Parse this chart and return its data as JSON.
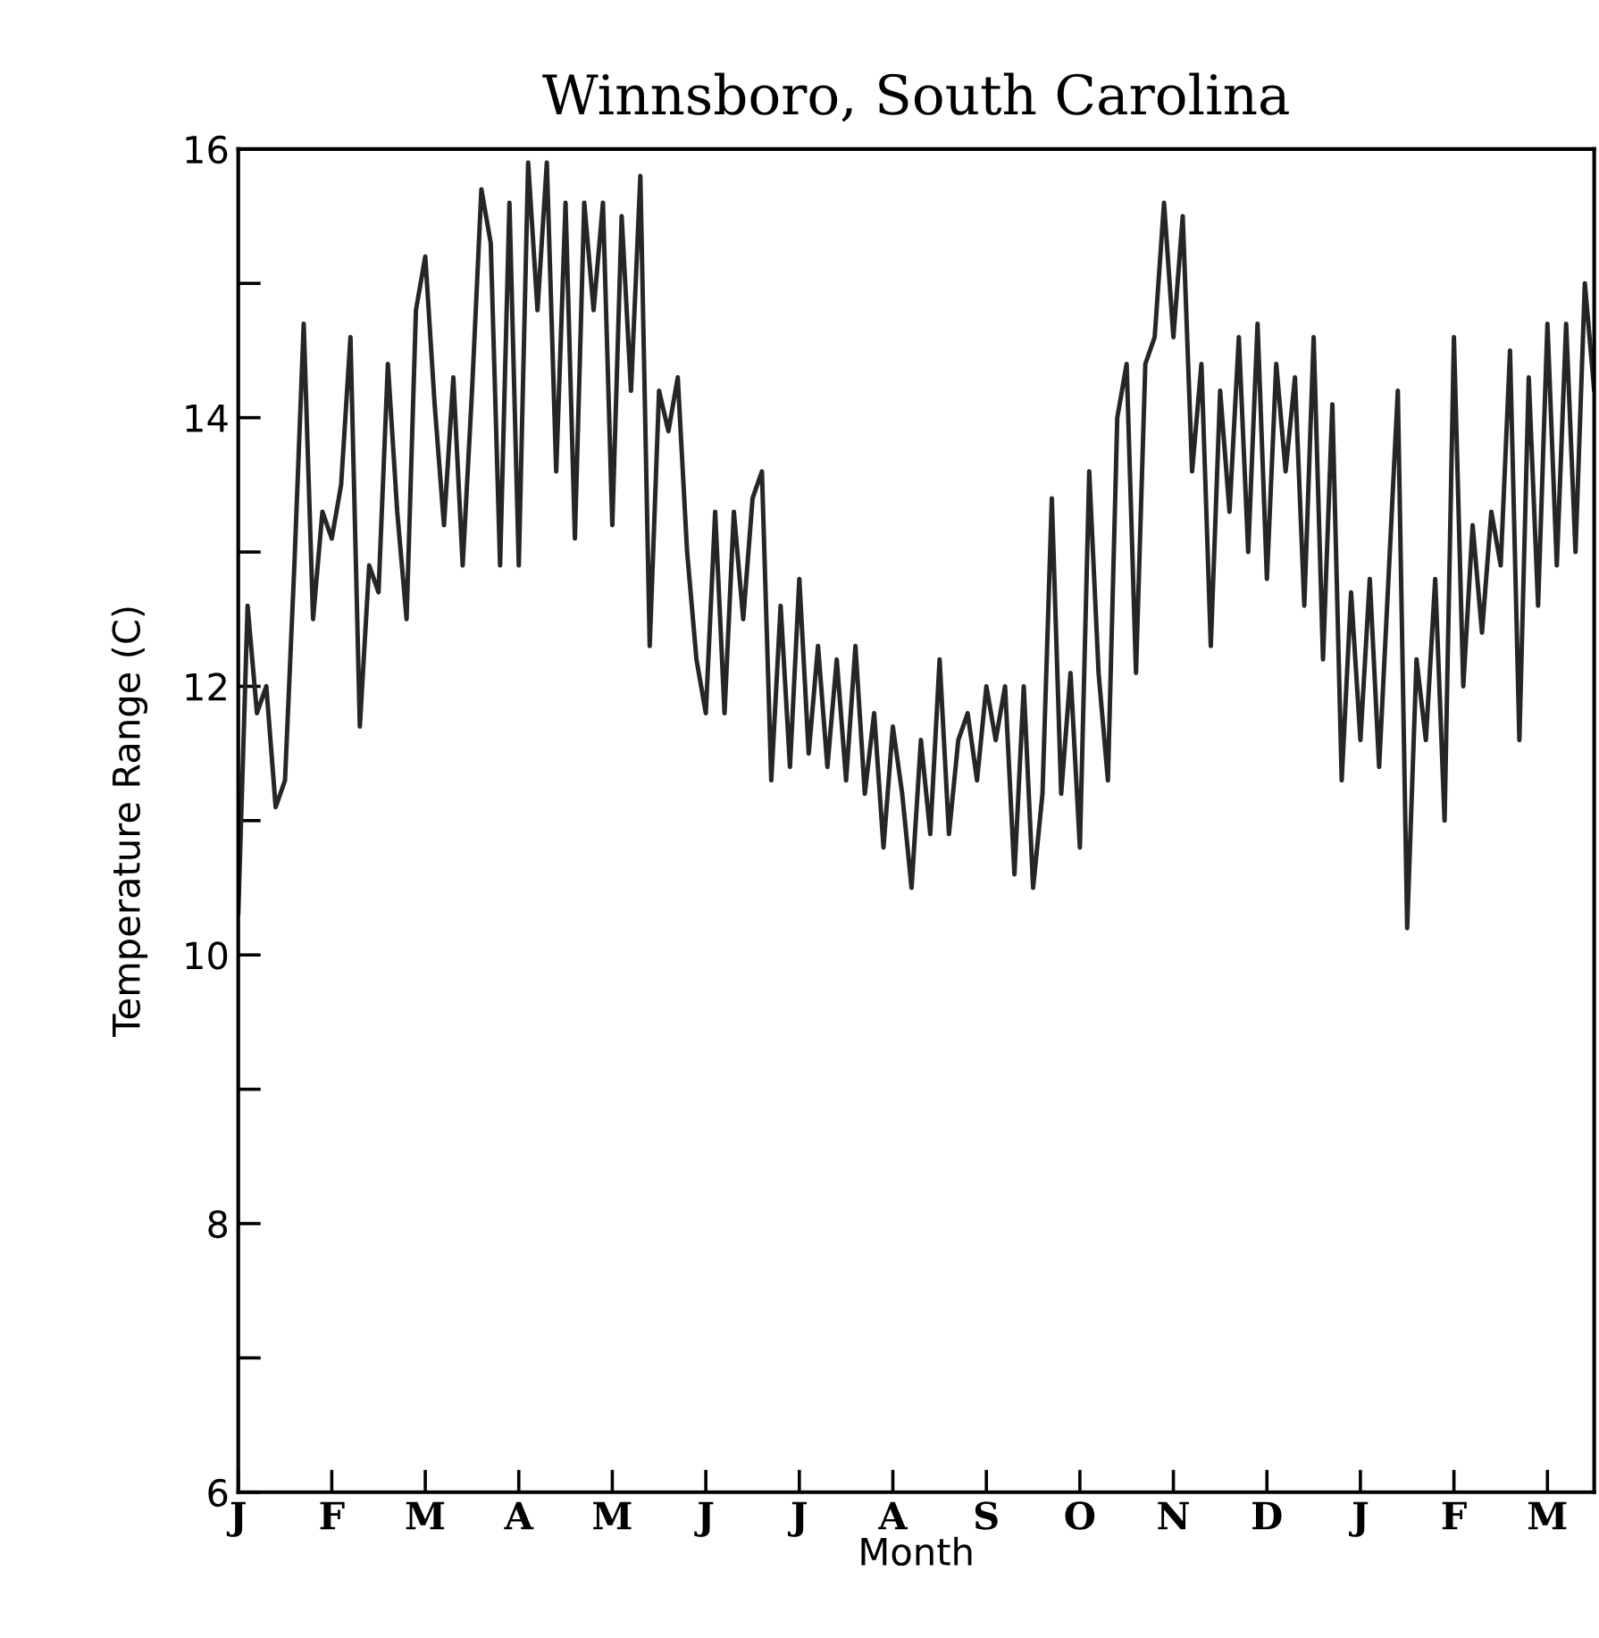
{
  "chart_data": {
    "type": "line",
    "title": "Winnsboro, South Carolina",
    "xlabel": "Month",
    "ylabel": "Temperature Range (C)",
    "ylim": [
      6,
      16
    ],
    "yticks": [
      6,
      {
        "value": 7,
        "label": null
      },
      8,
      {
        "value": 9,
        "label": null
      },
      10,
      {
        "value": 11,
        "label": null
      },
      12,
      {
        "value": 13,
        "label": null
      },
      14,
      {
        "value": 15,
        "label": null
      },
      16
    ],
    "grid": false,
    "marker": "none",
    "line_style": "solid",
    "categories": [
      "J",
      null,
      null,
      null,
      null,
      null,
      null,
      null,
      null,
      null,
      "F",
      null,
      null,
      null,
      null,
      null,
      null,
      null,
      null,
      null,
      "M",
      null,
      null,
      null,
      null,
      null,
      null,
      null,
      null,
      null,
      "A",
      null,
      null,
      null,
      null,
      null,
      null,
      null,
      null,
      null,
      "M",
      null,
      null,
      null,
      null,
      null,
      null,
      null,
      null,
      null,
      "J",
      null,
      null,
      null,
      null,
      null,
      null,
      null,
      null,
      null,
      "J",
      null,
      null,
      null,
      null,
      null,
      null,
      null,
      null,
      null,
      "A",
      null,
      null,
      null,
      null,
      null,
      null,
      null,
      null,
      null,
      "S",
      null,
      null,
      null,
      null,
      null,
      null,
      null,
      null,
      null,
      "O",
      null,
      null,
      null,
      null,
      null,
      null,
      null,
      null,
      null,
      "N",
      null,
      null,
      null,
      null,
      null,
      null,
      null,
      null,
      null,
      "D",
      null,
      null,
      null,
      null,
      null,
      null,
      null,
      null,
      null,
      "J",
      null,
      null,
      null,
      null,
      null,
      null,
      null,
      null,
      null,
      "F",
      null,
      null,
      null,
      null,
      null,
      null,
      null,
      null,
      null,
      "M",
      null,
      null,
      null,
      null,
      null
    ],
    "series": [
      {
        "color": "#262626",
        "values": [
          10.3,
          12.6,
          11.8,
          12.0,
          11.1,
          11.3,
          12.9,
          14.7,
          12.5,
          13.3,
          13.1,
          13.5,
          14.6,
          11.7,
          12.9,
          12.7,
          14.4,
          13.3,
          12.5,
          14.8,
          15.2,
          14.1,
          13.2,
          14.3,
          12.9,
          14.2,
          15.7,
          15.3,
          12.9,
          15.6,
          12.9,
          15.9,
          14.8,
          15.9,
          13.6,
          15.6,
          13.1,
          15.6,
          14.8,
          15.6,
          13.2,
          15.5,
          14.2,
          15.8,
          12.3,
          14.2,
          13.9,
          14.3,
          13.0,
          12.2,
          11.8,
          13.3,
          11.8,
          13.3,
          12.5,
          13.4,
          13.6,
          11.3,
          12.6,
          11.4,
          12.8,
          11.5,
          12.3,
          11.4,
          12.2,
          11.3,
          12.3,
          11.2,
          11.8,
          10.8,
          11.7,
          11.2,
          10.5,
          11.6,
          10.9,
          12.2,
          10.9,
          11.6,
          11.8,
          11.3,
          12.0,
          11.6,
          12.0,
          10.6,
          12.0,
          10.5,
          11.2,
          13.4,
          11.2,
          12.1,
          10.8,
          13.6,
          12.1,
          11.3,
          14.0,
          14.4,
          12.1,
          14.4,
          14.6,
          15.6,
          14.6,
          15.5,
          13.6,
          14.4,
          12.3,
          14.2,
          13.3,
          14.6,
          13.0,
          14.7,
          12.8,
          14.4,
          13.6,
          14.3,
          12.6,
          14.6,
          12.2,
          14.1,
          11.3,
          12.7,
          11.6,
          12.8,
          11.4,
          12.8,
          14.2,
          10.2,
          12.2,
          11.6,
          12.8,
          11.0,
          14.6,
          12.0,
          13.2,
          12.4,
          13.3,
          12.9,
          14.5,
          11.6,
          14.3,
          12.6,
          14.7,
          12.9,
          14.7,
          13.0,
          15.0,
          14.2
        ]
      }
    ]
  }
}
